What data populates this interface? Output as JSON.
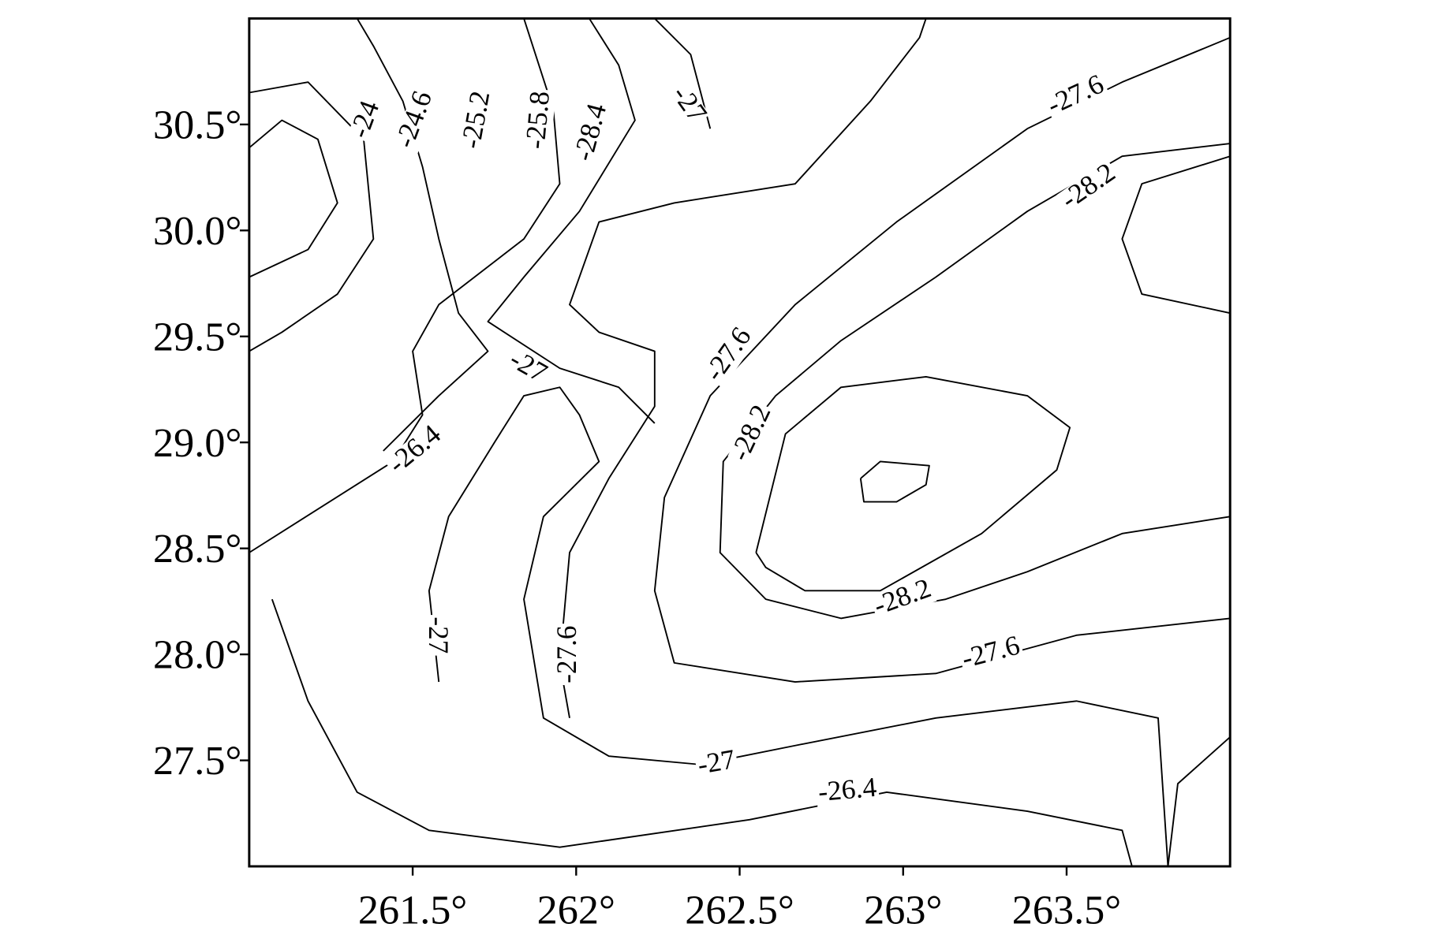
{
  "chart_data": {
    "type": "contour",
    "xlim": [
      261,
      264
    ],
    "ylim": [
      27,
      31
    ],
    "xticks": [
      {
        "value": 261.5,
        "label": "261.5°"
      },
      {
        "value": 262,
        "label": "262°"
      },
      {
        "value": 262.5,
        "label": "262.5°"
      },
      {
        "value": 263,
        "label": "263°"
      },
      {
        "value": 263.5,
        "label": "263.5°"
      }
    ],
    "yticks": [
      {
        "value": 27.5,
        "label": "27.5°"
      },
      {
        "value": 28,
        "label": "28.0°"
      },
      {
        "value": 28.5,
        "label": "28.5°"
      },
      {
        "value": 29,
        "label": "29.0°"
      },
      {
        "value": 29.5,
        "label": "29.5°"
      },
      {
        "value": 30,
        "label": "30.0°"
      },
      {
        "value": 30.5,
        "label": "30.5°"
      }
    ],
    "color": "#000000",
    "lines": [
      {
        "x": [
          262.87,
          262.93,
          263.08,
          263.07,
          262.98,
          262.88,
          262.87
        ],
        "y": [
          28.83,
          28.91,
          28.89,
          28.8,
          28.72,
          28.72,
          28.83
        ]
      },
      {
        "x": [
          262.55,
          262.64,
          262.81,
          263.07,
          263.38,
          263.51,
          263.47,
          263.24,
          262.93,
          262.7,
          262.58,
          262.55
        ],
        "y": [
          28.48,
          29.04,
          29.26,
          29.31,
          29.22,
          29.07,
          28.87,
          28.57,
          28.3,
          28.3,
          28.41,
          28.48
        ]
      },
      {
        "x": [
          264,
          263.67,
          263.38,
          263.13,
          262.81,
          262.58,
          262.44,
          262.45,
          262.61,
          262.81,
          263.1,
          263.38,
          263.67,
          264
        ],
        "y": [
          28.65,
          28.57,
          28.39,
          28.26,
          28.17,
          28.26,
          28.48,
          28.91,
          29.22,
          29.48,
          29.78,
          30.09,
          30.35,
          30.41
        ]
      },
      {
        "x": [
          264,
          263.53,
          263.1,
          262.67,
          262.3,
          262.24,
          262.27,
          262.41,
          262.67,
          262.98,
          263.38,
          263.67,
          264
        ],
        "y": [
          28.17,
          28.09,
          27.91,
          27.87,
          27.96,
          28.3,
          28.74,
          29.22,
          29.65,
          30.04,
          30.48,
          30.7,
          30.91
        ]
      },
      {
        "x": [
          261.98,
          261.95,
          261.98,
          262.1,
          262.24,
          262.24,
          262.07,
          261.98,
          262.07,
          262.3,
          262.67,
          262.9,
          263.05,
          263.07
        ],
        "y": [
          27.7,
          27.96,
          28.48,
          28.83,
          29.17,
          29.43,
          29.52,
          29.65,
          30.04,
          30.13,
          30.22,
          30.61,
          30.91,
          31.0
        ]
      },
      {
        "x": [
          261.58,
          261.55,
          261.61,
          261.75,
          261.84,
          261.95,
          262.01,
          262.07,
          261.9,
          261.84,
          261.9,
          262.1,
          262.38,
          262.67,
          263.1,
          263.53,
          263.78,
          263.81
        ],
        "y": [
          27.87,
          28.3,
          28.65,
          29.0,
          29.22,
          29.26,
          29.13,
          28.91,
          28.65,
          28.26,
          27.7,
          27.52,
          27.48,
          27.57,
          27.7,
          27.78,
          27.7,
          27.0
        ]
      },
      {
        "x": [
          261.41,
          261.58,
          261.73,
          261.64,
          261.58,
          261.53,
          261.47,
          261.38,
          261.33
        ],
        "y": [
          28.96,
          29.22,
          29.43,
          29.61,
          29.96,
          30.3,
          30.61,
          30.87,
          31.0
        ]
      },
      {
        "x": [
          261.07,
          261.18,
          261.33,
          261.55,
          261.95,
          262.53,
          262.95,
          263.38,
          263.67,
          263.7
        ],
        "y": [
          28.26,
          27.78,
          27.35,
          27.17,
          27.09,
          27.22,
          27.35,
          27.26,
          27.17,
          27.0
        ]
      },
      {
        "x": [
          261.0,
          261.1,
          261.21,
          261.27,
          261.18,
          261.0
        ],
        "y": [
          30.39,
          30.52,
          30.43,
          30.13,
          29.91,
          29.78
        ]
      },
      {
        "x": [
          261.0,
          261.18,
          261.35,
          261.38,
          261.27,
          261.1,
          261.0
        ],
        "y": [
          30.65,
          30.7,
          30.43,
          29.96,
          29.7,
          29.52,
          29.43
        ]
      },
      {
        "x": [
          261.84,
          261.93,
          261.95,
          261.84,
          261.58,
          261.5,
          261.53,
          261.44,
          261.0
        ],
        "y": [
          31.0,
          30.57,
          30.22,
          29.96,
          29.65,
          29.43,
          29.13,
          28.91,
          28.48
        ]
      },
      {
        "x": [
          262.04,
          262.13,
          262.18,
          262.01,
          261.84,
          261.73,
          261.95,
          262.13,
          262.24
        ],
        "y": [
          31.0,
          30.78,
          30.52,
          30.09,
          29.78,
          29.57,
          29.35,
          29.26,
          29.09
        ]
      },
      {
        "x": [
          264,
          263.73,
          263.67,
          263.73,
          264
        ],
        "y": [
          29.61,
          29.7,
          29.96,
          30.22,
          30.35
        ]
      },
      {
        "x": [
          263.81,
          263.84,
          264
        ],
        "y": [
          27.0,
          27.39,
          27.61
        ]
      },
      {
        "x": [
          262.24,
          262.35,
          262.41
        ],
        "y": [
          31.0,
          30.83,
          30.48
        ]
      }
    ],
    "contour_labels": [
      {
        "level": -24,
        "x": 261.36,
        "y": 30.52
      },
      {
        "level": -24.6,
        "x": 261.51,
        "y": 30.52
      },
      {
        "level": -25.2,
        "x": 261.7,
        "y": 30.52
      },
      {
        "level": -25.8,
        "x": 261.89,
        "y": 30.52
      },
      {
        "level": -28.4,
        "x": 262.05,
        "y": 30.46
      },
      {
        "level": -27,
        "x": 262.34,
        "y": 30.59
      },
      {
        "level": -27.6,
        "x": 263.53,
        "y": 30.63
      },
      {
        "level": -28.2,
        "x": 263.57,
        "y": 30.2
      },
      {
        "level": -27,
        "x": 261.85,
        "y": 29.35
      },
      {
        "level": -26.4,
        "x": 261.51,
        "y": 28.96
      },
      {
        "level": -27.6,
        "x": 262.47,
        "y": 29.41
      },
      {
        "level": -28.2,
        "x": 262.54,
        "y": 29.04
      },
      {
        "level": -28.2,
        "x": 263.0,
        "y": 28.26
      },
      {
        "level": -27.6,
        "x": 263.27,
        "y": 28.0
      },
      {
        "level": -27,
        "x": 262.43,
        "y": 27.48
      },
      {
        "level": -26.4,
        "x": 262.83,
        "y": 27.35
      },
      {
        "level": -27,
        "x": 261.57,
        "y": 28.09
      },
      {
        "level": -27.6,
        "x": 261.98,
        "y": 28.0
      }
    ]
  }
}
